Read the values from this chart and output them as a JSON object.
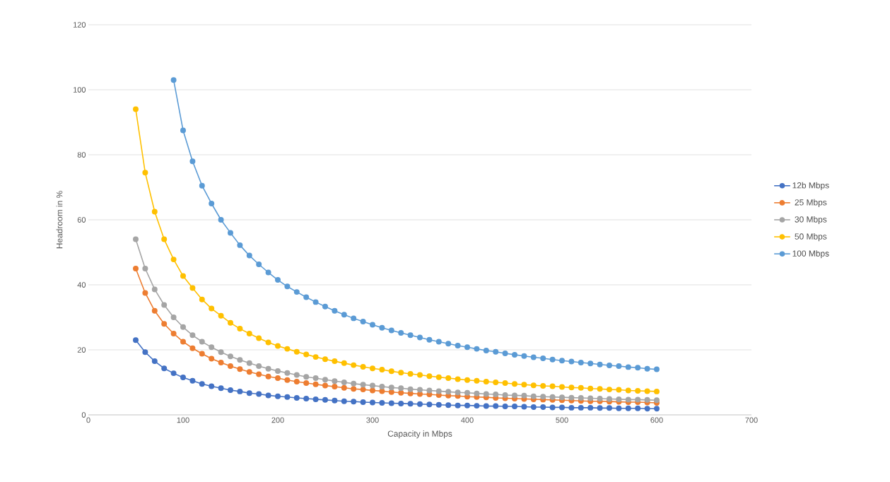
{
  "chart_data": {
    "type": "line",
    "xlabel": "Capacity in Mbps",
    "ylabel": "Headroom in %",
    "x": [
      50,
      60,
      70,
      80,
      90,
      100,
      110,
      120,
      130,
      140,
      150,
      160,
      170,
      180,
      190,
      200,
      210,
      220,
      230,
      240,
      250,
      260,
      270,
      280,
      290,
      300,
      310,
      320,
      330,
      340,
      350,
      360,
      370,
      380,
      390,
      400,
      410,
      420,
      430,
      440,
      450,
      460,
      470,
      480,
      490,
      500,
      510,
      520,
      530,
      540,
      550,
      560,
      570,
      580,
      590,
      600
    ],
    "xlim": [
      0,
      700
    ],
    "xticks": [
      0,
      100,
      200,
      300,
      400,
      500,
      600,
      700
    ],
    "ylim": [
      0,
      120
    ],
    "yticks": [
      0,
      20,
      40,
      60,
      80,
      100,
      120
    ],
    "grid": "y",
    "legend": "right",
    "marker": "circle",
    "line_style": "solid",
    "series": [
      {
        "name": "12b Mbps",
        "color": "#4472c4",
        "values": [
          23,
          19.3,
          16.5,
          14.3,
          12.8,
          11.5,
          10.5,
          9.5,
          8.8,
          8.2,
          7.6,
          7.2,
          6.7,
          6.4,
          6.0,
          5.7,
          5.5,
          5.2,
          5.0,
          4.8,
          4.6,
          4.4,
          4.2,
          4.1,
          3.9,
          3.8,
          3.7,
          3.6,
          3.5,
          3.4,
          3.3,
          3.2,
          3.1,
          3.0,
          2.9,
          2.9,
          2.8,
          2.7,
          2.7,
          2.6,
          2.6,
          2.5,
          2.4,
          2.4,
          2.3,
          2.3,
          2.2,
          2.2,
          2.2,
          2.1,
          2.1,
          2.0,
          2.0,
          2.0,
          1.9,
          1.9
        ]
      },
      {
        "name": "25 Mbps",
        "color": "#ed7d31",
        "values": [
          45,
          37.5,
          32,
          28,
          25,
          22.5,
          20.5,
          18.8,
          17.3,
          16.1,
          15,
          14.1,
          13.2,
          12.5,
          11.8,
          11.3,
          10.7,
          10.2,
          9.8,
          9.4,
          9,
          8.7,
          8.3,
          8,
          7.8,
          7.5,
          7.3,
          7,
          6.8,
          6.6,
          6.4,
          6.3,
          6.1,
          5.9,
          5.8,
          5.6,
          5.5,
          5.4,
          5.2,
          5.1,
          5,
          4.9,
          4.8,
          4.7,
          4.6,
          4.5,
          4.4,
          4.3,
          4.2,
          4.2,
          4.1,
          4,
          3.9,
          3.9,
          3.8,
          3.7
        ]
      },
      {
        "name": "30 Mbps",
        "color": "#a5a5a5",
        "values": [
          54,
          45,
          38.6,
          33.8,
          30,
          27,
          24.5,
          22.5,
          20.8,
          19.3,
          18,
          16.9,
          15.9,
          15,
          14.2,
          13.5,
          12.9,
          12.3,
          11.7,
          11.3,
          10.8,
          10.4,
          10,
          9.6,
          9.3,
          9,
          8.7,
          8.4,
          8.2,
          7.9,
          7.7,
          7.5,
          7.3,
          7.1,
          6.9,
          6.8,
          6.6,
          6.4,
          6.3,
          6.1,
          6,
          5.9,
          5.7,
          5.6,
          5.5,
          5.4,
          5.3,
          5.2,
          5.1,
          5,
          4.9,
          4.8,
          4.7,
          4.7,
          4.6,
          4.5
        ]
      },
      {
        "name": "50 Mbps",
        "color": "#ffc000",
        "values": [
          94,
          74.5,
          62.5,
          54,
          47.8,
          42.7,
          39,
          35.5,
          32.7,
          30.5,
          28.3,
          26.5,
          25,
          23.6,
          22.3,
          21.2,
          20.3,
          19.4,
          18.6,
          17.8,
          17.1,
          16.5,
          15.9,
          15.3,
          14.8,
          14.3,
          13.9,
          13.4,
          13,
          12.6,
          12.3,
          11.9,
          11.6,
          11.3,
          11,
          10.7,
          10.5,
          10.2,
          10,
          9.8,
          9.5,
          9.3,
          9.1,
          8.9,
          8.8,
          8.6,
          8.4,
          8.3,
          8.1,
          8,
          7.8,
          7.7,
          7.5,
          7.4,
          7.3,
          7.2
        ]
      },
      {
        "name": "100 Mbps",
        "color": "#5b9bd5",
        "x": [
          90,
          100,
          110,
          120,
          130,
          140,
          150,
          160,
          170,
          180,
          190,
          200,
          210,
          220,
          230,
          240,
          250,
          260,
          270,
          280,
          290,
          300,
          310,
          320,
          330,
          340,
          350,
          360,
          370,
          380,
          390,
          400,
          410,
          420,
          430,
          440,
          450,
          460,
          470,
          480,
          490,
          500,
          510,
          520,
          530,
          540,
          550,
          560,
          570,
          580,
          590,
          600
        ],
        "values": [
          103,
          87.5,
          78,
          70.5,
          65,
          60,
          56,
          52.2,
          49,
          46.3,
          43.8,
          41.5,
          39.5,
          37.8,
          36.2,
          34.7,
          33.3,
          32,
          30.8,
          29.7,
          28.7,
          27.7,
          26.8,
          26,
          25.2,
          24.5,
          23.8,
          23.1,
          22.5,
          21.9,
          21.3,
          20.8,
          20.3,
          19.8,
          19.4,
          18.9,
          18.5,
          18.1,
          17.7,
          17.4,
          17,
          16.7,
          16.4,
          16.1,
          15.8,
          15.5,
          15.2,
          15,
          14.7,
          14.5,
          14.2,
          14
        ]
      }
    ]
  }
}
